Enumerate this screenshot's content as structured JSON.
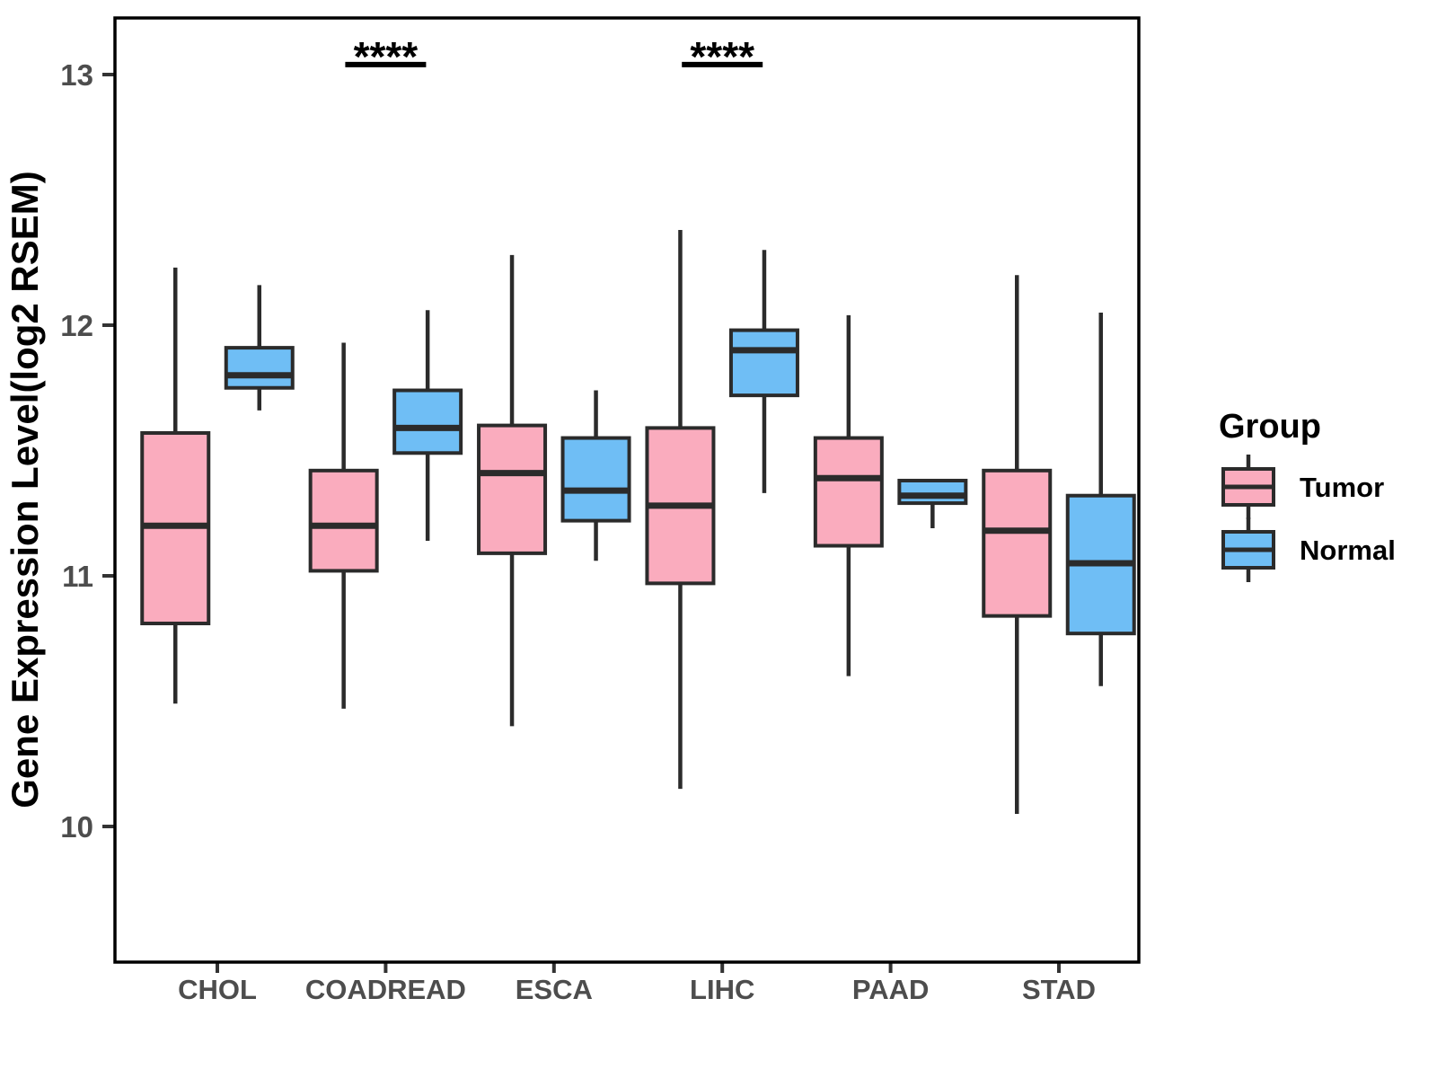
{
  "y_axis": {
    "label": "Gene Expression Level(log2 RSEM)",
    "ticks": [
      10,
      11,
      12,
      13
    ],
    "range": [
      9.46,
      13.23
    ]
  },
  "x_axis": {
    "categories": [
      "CHOL",
      "COADREAD",
      "ESCA",
      "LIHC",
      "PAAD",
      "STAD"
    ]
  },
  "legend": {
    "title": "Group",
    "entries": [
      {
        "label": "Tumor",
        "color": "#FAACBE"
      },
      {
        "label": "Normal",
        "color": "#6FBEF5"
      }
    ]
  },
  "style": {
    "tumor_fill": "#FAACBE",
    "normal_fill": "#6FBEF5",
    "box_border": "#2B2B2B",
    "panel_border": "#000000",
    "axis_tick_text": "#4D4D4D",
    "title_text": "#000000",
    "background": "#FFFFFF"
  },
  "chart_data": {
    "type": "boxplot",
    "title": "",
    "xlabel": "",
    "ylabel": "Gene Expression Level(log2 RSEM)",
    "ylim": [
      9.46,
      13.23
    ],
    "yticks": [
      10,
      11,
      12,
      13
    ],
    "grid": false,
    "legend_position": "right",
    "categories": [
      "CHOL",
      "COADREAD",
      "ESCA",
      "LIHC",
      "PAAD",
      "STAD"
    ],
    "series": [
      {
        "name": "Tumor",
        "color": "#FAACBE",
        "boxes": [
          {
            "category": "CHOL",
            "whisker_low": 10.49,
            "q1": 10.81,
            "median": 11.2,
            "q3": 11.57,
            "whisker_high": 12.23
          },
          {
            "category": "COADREAD",
            "whisker_low": 10.47,
            "q1": 11.02,
            "median": 11.2,
            "q3": 11.42,
            "whisker_high": 11.93
          },
          {
            "category": "ESCA",
            "whisker_low": 10.4,
            "q1": 11.09,
            "median": 11.41,
            "q3": 11.6,
            "whisker_high": 12.28
          },
          {
            "category": "LIHC",
            "whisker_low": 10.15,
            "q1": 10.97,
            "median": 11.28,
            "q3": 11.59,
            "whisker_high": 12.38
          },
          {
            "category": "PAAD",
            "whisker_low": 10.6,
            "q1": 11.12,
            "median": 11.39,
            "q3": 11.55,
            "whisker_high": 12.04
          },
          {
            "category": "STAD",
            "whisker_low": 10.05,
            "q1": 10.84,
            "median": 11.18,
            "q3": 11.42,
            "whisker_high": 12.2
          }
        ]
      },
      {
        "name": "Normal",
        "color": "#6FBEF5",
        "boxes": [
          {
            "category": "CHOL",
            "whisker_low": 11.66,
            "q1": 11.75,
            "median": 11.8,
            "q3": 11.91,
            "whisker_high": 12.16
          },
          {
            "category": "COADREAD",
            "whisker_low": 11.14,
            "q1": 11.49,
            "median": 11.59,
            "q3": 11.74,
            "whisker_high": 12.06
          },
          {
            "category": "ESCA",
            "whisker_low": 11.06,
            "q1": 11.22,
            "median": 11.34,
            "q3": 11.55,
            "whisker_high": 11.74
          },
          {
            "category": "LIHC",
            "whisker_low": 11.33,
            "q1": 11.72,
            "median": 11.9,
            "q3": 11.98,
            "whisker_high": 12.3
          },
          {
            "category": "PAAD",
            "whisker_low": 11.19,
            "q1": 11.29,
            "median": 11.32,
            "q3": 11.38,
            "whisker_high": 11.38
          },
          {
            "category": "STAD",
            "whisker_low": 10.56,
            "q1": 10.77,
            "median": 11.05,
            "q3": 11.32,
            "whisker_high": 12.05
          }
        ]
      }
    ],
    "significance": [
      {
        "category": "COADREAD",
        "label": "****",
        "y": 13.04
      },
      {
        "category": "LIHC",
        "label": "****",
        "y": 13.04
      }
    ]
  }
}
